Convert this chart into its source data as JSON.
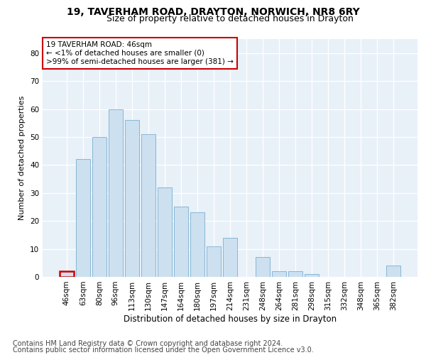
{
  "title1": "19, TAVERHAM ROAD, DRAYTON, NORWICH, NR8 6RY",
  "title2": "Size of property relative to detached houses in Drayton",
  "xlabel": "Distribution of detached houses by size in Drayton",
  "ylabel": "Number of detached properties",
  "categories": [
    "46sqm",
    "63sqm",
    "80sqm",
    "96sqm",
    "113sqm",
    "130sqm",
    "147sqm",
    "164sqm",
    "180sqm",
    "197sqm",
    "214sqm",
    "231sqm",
    "248sqm",
    "264sqm",
    "281sqm",
    "298sqm",
    "315sqm",
    "332sqm",
    "348sqm",
    "365sqm",
    "382sqm"
  ],
  "values": [
    2,
    42,
    50,
    60,
    56,
    51,
    32,
    25,
    23,
    11,
    14,
    0,
    7,
    2,
    2,
    1,
    0,
    0,
    0,
    0,
    4
  ],
  "bar_color": "#cce0f0",
  "bar_edge_color": "#7ab0d0",
  "highlight_bar_index": 0,
  "highlight_bar_edge_color": "#cc0000",
  "annotation_text": "19 TAVERHAM ROAD: 46sqm\n← <1% of detached houses are smaller (0)\n>99% of semi-detached houses are larger (381) →",
  "annotation_box_color": "#ffffff",
  "annotation_box_edge_color": "#cc0000",
  "ylim": [
    0,
    85
  ],
  "yticks": [
    0,
    10,
    20,
    30,
    40,
    50,
    60,
    70,
    80
  ],
  "footer1": "Contains HM Land Registry data © Crown copyright and database right 2024.",
  "footer2": "Contains public sector information licensed under the Open Government Licence v3.0.",
  "bg_color": "#ffffff",
  "plot_bg_color": "#e8f0f8",
  "grid_color": "#ffffff",
  "title1_fontsize": 10,
  "title2_fontsize": 9,
  "xlabel_fontsize": 8.5,
  "ylabel_fontsize": 8,
  "tick_fontsize": 7.5,
  "footer_fontsize": 7,
  "annotation_fontsize": 7.5
}
